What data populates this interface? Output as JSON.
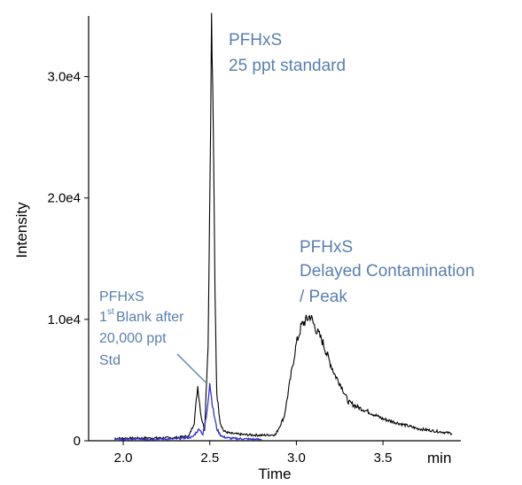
{
  "chart_data": {
    "type": "line",
    "xlabel": "Time",
    "xunit": "min",
    "ylabel": "Intensity",
    "xlim": [
      1.8,
      3.95
    ],
    "ylim": [
      0,
      35000
    ],
    "xticks": [
      2.0,
      2.5,
      3.0,
      3.5
    ],
    "xtick_labels": [
      "2.0",
      "2.5",
      "3.0",
      "3.5"
    ],
    "yticks": [
      0,
      10000,
      20000,
      30000
    ],
    "ytick_labels": [
      "0",
      "1.0e4",
      "2.0e4",
      "3.0e4"
    ],
    "grid": false,
    "series": [
      {
        "color": "#000000",
        "x": [
          1.95,
          2.3,
          2.38,
          2.41,
          2.43,
          2.45,
          2.47,
          2.49,
          2.5,
          2.51,
          2.52,
          2.53,
          2.54,
          2.56,
          2.58,
          2.62,
          2.7,
          2.8,
          2.88,
          2.93,
          2.97,
          3.0,
          3.03,
          3.06,
          3.08,
          3.1,
          3.12,
          3.15,
          3.18,
          3.22,
          3.26,
          3.3,
          3.35,
          3.4,
          3.5,
          3.6,
          3.7,
          3.8,
          3.9
        ],
        "y": [
          200,
          250,
          400,
          1500,
          4500,
          2000,
          900,
          8000,
          20000,
          34500,
          26000,
          12000,
          4000,
          1500,
          800,
          600,
          500,
          450,
          500,
          2000,
          5500,
          8000,
          9500,
          10000,
          10300,
          9600,
          9000,
          8200,
          7000,
          5500,
          4500,
          3200,
          2800,
          2500,
          1800,
          1400,
          1000,
          800,
          600
        ]
      },
      {
        "color": "#3333cc",
        "x": [
          1.95,
          2.3,
          2.4,
          2.44,
          2.46,
          2.48,
          2.5,
          2.51,
          2.52,
          2.54,
          2.56,
          2.58,
          2.62,
          2.7,
          2.8
        ],
        "y": [
          100,
          150,
          300,
          1000,
          500,
          2000,
          4800,
          3500,
          2500,
          1000,
          500,
          300,
          200,
          150,
          100
        ]
      }
    ],
    "annotations": [
      {
        "lines": [
          "PFHxS",
          "25 ppt standard"
        ]
      },
      {
        "lines": [
          "PFHxS",
          "Delayed Contamination",
          "/ Peak"
        ]
      },
      {
        "lines": [
          "PFHxS",
          "1",
          "st",
          " Blank after",
          "20,000 ppt",
          "Std"
        ]
      }
    ]
  }
}
